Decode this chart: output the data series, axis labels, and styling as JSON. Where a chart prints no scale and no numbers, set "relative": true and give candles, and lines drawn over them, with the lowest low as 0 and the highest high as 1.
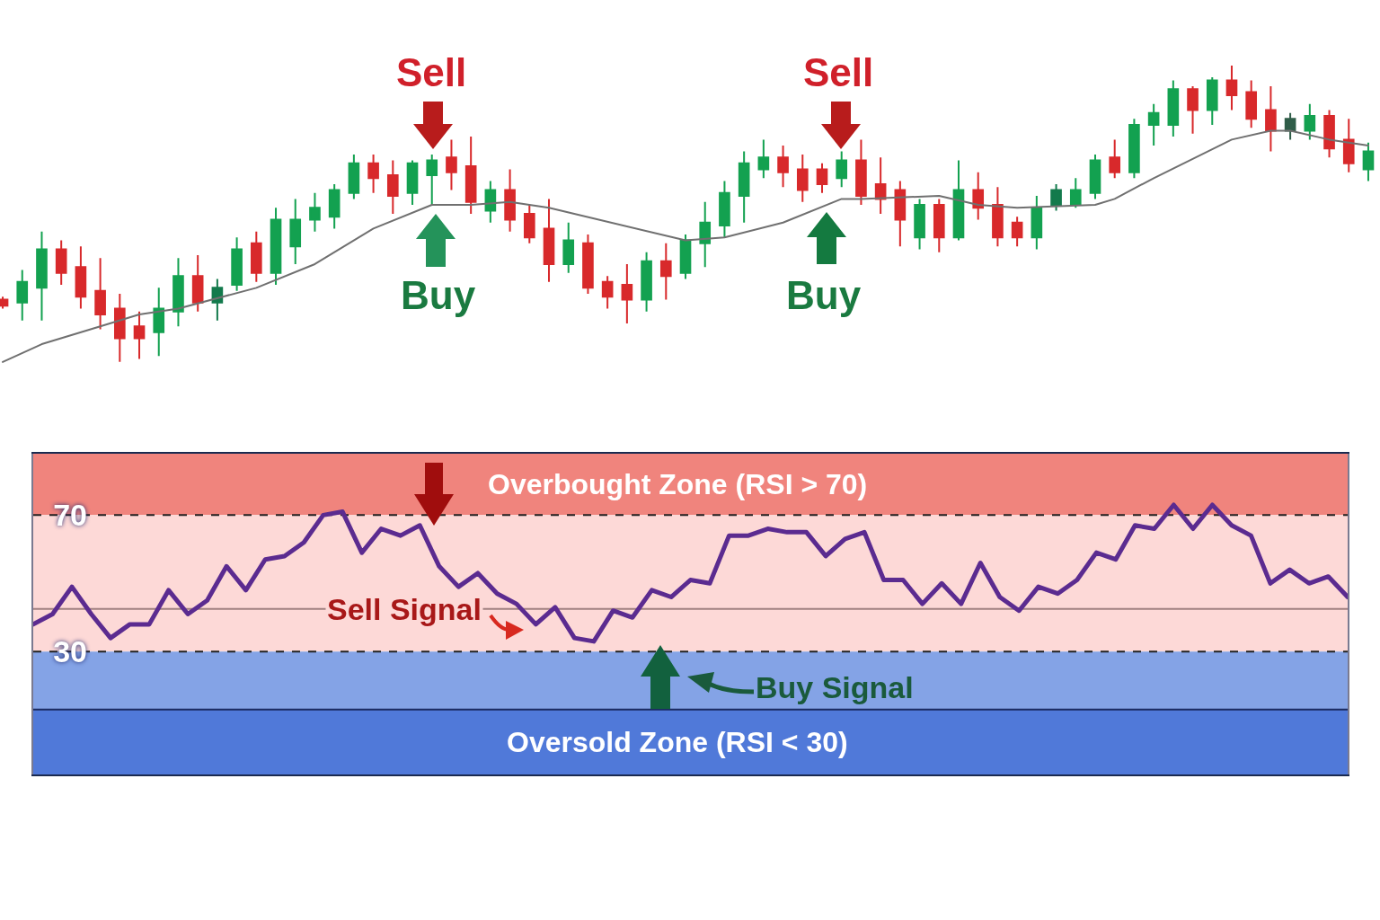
{
  "chart_data": [
    {
      "type": "candlestick",
      "relative": true,
      "tick_labels": false,
      "grid": false,
      "categories": [
        null,
        null,
        null,
        null,
        null,
        null,
        null,
        null,
        null,
        null,
        null,
        null,
        null,
        null,
        null,
        null,
        null,
        null,
        null,
        null,
        null,
        null,
        null,
        null,
        null,
        null,
        null,
        null,
        null,
        null,
        null,
        null,
        null,
        null,
        null,
        null,
        null,
        null,
        null,
        null,
        null,
        null,
        null,
        null,
        null,
        null,
        null,
        null,
        null,
        null,
        null,
        null,
        null,
        null,
        null,
        null,
        null,
        null,
        null,
        null,
        null,
        null,
        null,
        null,
        null,
        null,
        null,
        null,
        null,
        null,
        null
      ],
      "colors": [
        "#d8292b",
        "#13a150",
        "#13a150",
        "#d8292b",
        "#d8292b",
        "#d8292b",
        "#d8292b",
        "#d8292b",
        "#13a150",
        "#13a150",
        "#d8292b",
        "#137a4c",
        "#13a150",
        "#d8292b",
        "#13a150",
        "#13a150",
        "#13a150",
        "#13a150",
        "#13a150",
        "#d8292b",
        "#d8292b",
        "#13a150",
        "#13a150",
        "#d8292b",
        "#d8292b",
        "#13a150",
        "#d8292b",
        "#d8292b",
        "#d8292b",
        "#13a150",
        "#d8292b",
        "#d8292b",
        "#d8292b",
        "#13a150",
        "#d8292b",
        "#13a150",
        "#13a150",
        "#13a150",
        "#13a150",
        "#13a150",
        "#d8292b",
        "#d8292b",
        "#d8292b",
        "#13a150",
        "#d8292b",
        "#d8292b",
        "#d8292b",
        "#13a150",
        "#d8292b",
        "#13a150",
        "#d8292b",
        "#d8292b",
        "#d8292b",
        "#13a150",
        "#137a4c",
        "#13a150",
        "#13a150",
        "#d8292b",
        "#13a150",
        "#13a150",
        "#13a150",
        "#d8292b",
        "#13a150",
        "#d8292b",
        "#d8292b",
        "#d8292b",
        "#2f5d48",
        "#13a150",
        "#d8292b",
        "#d8292b",
        "#13a150"
      ],
      "ohlc": [
        [
          0.21,
          0.22,
          0.18,
          0.19
        ],
        [
          0.2,
          0.31,
          0.14,
          0.27
        ],
        [
          0.25,
          0.44,
          0.14,
          0.38
        ],
        [
          0.38,
          0.41,
          0.26,
          0.3
        ],
        [
          0.32,
          0.39,
          0.18,
          0.22
        ],
        [
          0.24,
          0.35,
          0.11,
          0.16
        ],
        [
          0.18,
          0.23,
          0.0,
          0.08
        ],
        [
          0.12,
          0.17,
          0.01,
          0.08
        ],
        [
          0.1,
          0.25,
          0.02,
          0.18
        ],
        [
          0.17,
          0.35,
          0.12,
          0.29
        ],
        [
          0.29,
          0.36,
          0.17,
          0.2
        ],
        [
          0.2,
          0.28,
          0.14,
          0.25
        ],
        [
          0.26,
          0.42,
          0.24,
          0.38
        ],
        [
          0.4,
          0.44,
          0.27,
          0.3
        ],
        [
          0.3,
          0.52,
          0.26,
          0.48
        ],
        [
          0.39,
          0.55,
          0.33,
          0.48
        ],
        [
          0.48,
          0.57,
          0.44,
          0.52
        ],
        [
          0.49,
          0.6,
          0.45,
          0.58
        ],
        [
          0.57,
          0.7,
          0.55,
          0.67
        ],
        [
          0.67,
          0.7,
          0.57,
          0.62
        ],
        [
          0.63,
          0.68,
          0.5,
          0.56
        ],
        [
          0.57,
          0.68,
          0.53,
          0.67
        ],
        [
          0.63,
          0.7,
          0.53,
          0.68
        ],
        [
          0.69,
          0.75,
          0.58,
          0.64
        ],
        [
          0.66,
          0.76,
          0.5,
          0.54
        ],
        [
          0.51,
          0.61,
          0.47,
          0.58
        ],
        [
          0.58,
          0.65,
          0.44,
          0.48
        ],
        [
          0.5,
          0.53,
          0.4,
          0.42
        ],
        [
          0.45,
          0.55,
          0.27,
          0.33
        ],
        [
          0.33,
          0.47,
          0.3,
          0.41
        ],
        [
          0.4,
          0.43,
          0.23,
          0.25
        ],
        [
          0.27,
          0.29,
          0.18,
          0.22
        ],
        [
          0.26,
          0.33,
          0.13,
          0.21
        ],
        [
          0.21,
          0.37,
          0.17,
          0.34
        ],
        [
          0.34,
          0.4,
          0.21,
          0.29
        ],
        [
          0.3,
          0.43,
          0.28,
          0.41
        ],
        [
          0.4,
          0.54,
          0.32,
          0.47
        ],
        [
          0.46,
          0.61,
          0.42,
          0.57
        ],
        [
          0.56,
          0.71,
          0.47,
          0.67
        ],
        [
          0.65,
          0.75,
          0.62,
          0.69
        ],
        [
          0.69,
          0.73,
          0.59,
          0.64
        ],
        [
          0.65,
          0.7,
          0.54,
          0.58
        ],
        [
          0.65,
          0.67,
          0.57,
          0.6
        ],
        [
          0.62,
          0.71,
          0.59,
          0.68
        ],
        [
          0.68,
          0.75,
          0.53,
          0.56
        ],
        [
          0.6,
          0.69,
          0.5,
          0.55
        ],
        [
          0.58,
          0.61,
          0.39,
          0.48
        ],
        [
          0.42,
          0.55,
          0.38,
          0.53
        ],
        [
          0.53,
          0.55,
          0.37,
          0.42
        ],
        [
          0.42,
          0.68,
          0.41,
          0.58
        ],
        [
          0.58,
          0.64,
          0.48,
          0.52
        ],
        [
          0.53,
          0.59,
          0.39,
          0.42
        ],
        [
          0.47,
          0.49,
          0.39,
          0.42
        ],
        [
          0.42,
          0.56,
          0.38,
          0.52
        ],
        [
          0.53,
          0.6,
          0.51,
          0.58
        ],
        [
          0.53,
          0.62,
          0.52,
          0.58
        ],
        [
          0.57,
          0.7,
          0.55,
          0.68
        ],
        [
          0.69,
          0.75,
          0.62,
          0.64
        ],
        [
          0.64,
          0.82,
          0.62,
          0.8
        ],
        [
          0.8,
          0.87,
          0.73,
          0.84
        ],
        [
          0.8,
          0.95,
          0.76,
          0.92
        ],
        [
          0.92,
          0.93,
          0.77,
          0.85
        ],
        [
          0.85,
          0.96,
          0.8,
          0.95
        ],
        [
          0.95,
          1.0,
          0.85,
          0.9
        ],
        [
          0.91,
          0.95,
          0.79,
          0.82
        ],
        [
          0.85,
          0.93,
          0.71,
          0.78
        ],
        [
          0.78,
          0.84,
          0.75,
          0.82
        ],
        [
          0.78,
          0.87,
          0.75,
          0.83
        ],
        [
          0.83,
          0.85,
          0.69,
          0.72
        ],
        [
          0.75,
          0.82,
          0.64,
          0.67
        ],
        [
          0.65,
          0.74,
          0.61,
          0.71
        ]
      ],
      "series": [
        {
          "type": "line",
          "color": "#707070",
          "values": [
            0,
            null,
            0.06,
            null,
            null,
            0.12,
            null,
            0.16,
            null,
            0.18,
            null,
            null,
            null,
            0.25,
            null,
            null,
            0.33,
            null,
            null,
            0.45,
            null,
            null,
            0.53,
            null,
            0.53,
            null,
            0.54,
            null,
            0.52,
            null,
            null,
            null,
            null,
            null,
            null,
            0.41,
            null,
            0.42,
            null,
            null,
            0.47,
            null,
            null,
            0.55,
            0.55,
            null,
            null,
            null,
            0.56,
            null,
            0.53,
            null,
            0.52,
            null,
            null,
            null,
            0.53,
            0.55,
            null,
            0.62,
            null,
            null,
            null,
            0.75,
            null,
            0.78,
            0.78,
            null,
            0.75,
            null,
            0.73
          ]
        }
      ],
      "annotations": [
        "Sell",
        "Buy",
        "Sell",
        "Buy"
      ]
    },
    {
      "type": "line",
      "tick_labels": "y",
      "grid": false,
      "categories": [
        null,
        null,
        null,
        null,
        null,
        null,
        null,
        null,
        null,
        null,
        null,
        null,
        null,
        null,
        null,
        null,
        null,
        null,
        null,
        null,
        null,
        null,
        null,
        null,
        null,
        null,
        null,
        null,
        null,
        null,
        null,
        null,
        null,
        null,
        null,
        null,
        null,
        null,
        null,
        null,
        null,
        null,
        null,
        null,
        null,
        null,
        null,
        null,
        null,
        null,
        null,
        null,
        null,
        null,
        null,
        null,
        null,
        null,
        null,
        null,
        null,
        null,
        null,
        null,
        null,
        null,
        null,
        null,
        null
      ],
      "series": [
        {
          "color": "#5b2b90",
          "values": [
            38,
            41,
            49,
            41,
            34,
            38,
            38,
            48,
            41,
            45,
            55,
            48,
            57,
            58,
            62,
            70,
            71,
            59,
            66,
            64,
            67,
            55,
            49,
            53,
            47,
            44,
            38,
            43,
            34,
            33,
            42,
            40,
            48,
            46,
            51,
            50,
            64,
            64,
            66,
            65,
            65,
            58,
            63,
            65,
            51,
            51,
            44,
            50,
            44,
            56,
            46,
            42,
            49,
            47,
            51,
            59,
            57,
            67,
            66,
            73,
            66,
            73,
            67,
            64,
            50,
            54,
            50,
            52,
            46
          ]
        }
      ],
      "ylim": [
        -6,
        88
      ],
      "yticks": [
        70,
        30
      ],
      "bands": [
        {
          "axis": "y",
          "from": 70,
          "to": 88,
          "label": "Overbought Zone (RSI > 70)",
          "color": "#f0847d"
        },
        {
          "axis": "y",
          "from": 30,
          "to": 70,
          "color": "#fdd9d7"
        },
        {
          "axis": "y",
          "from": 13,
          "to": 30,
          "color": "#84a3e6"
        },
        {
          "axis": "y",
          "from": -6,
          "to": 13,
          "label": "Oversold Zone (RSI < 30)",
          "color": "#5079d9"
        }
      ],
      "ref_lines": [
        {
          "axis": "y",
          "value": 70,
          "line_style": "dashed",
          "color": "#222222"
        },
        {
          "axis": "y",
          "value": 30,
          "line_style": "dashed",
          "color": "#222222"
        },
        {
          "axis": "y",
          "value": 42.5,
          "line_style": "solid",
          "color": "#a08080"
        },
        {
          "axis": "y",
          "value": 13,
          "line_style": "solid",
          "color": "#1a2a60"
        }
      ],
      "annotations": [
        "Sell Signal",
        "Buy Signal"
      ]
    }
  ]
}
